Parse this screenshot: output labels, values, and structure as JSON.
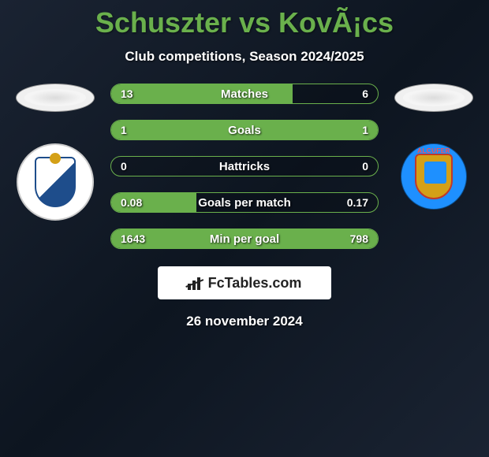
{
  "title": "Schuszter vs KovÃ¡cs",
  "subtitle": "Club competitions, Season 2024/2025",
  "date_line": "26 november 2024",
  "brand": {
    "text": "FcTables.com"
  },
  "fill_color": "#6ab04c",
  "border_color": "#6ab04c",
  "teams": {
    "left": {
      "curve_text": "",
      "logo_bg": "#ffffff"
    },
    "right": {
      "curve_text": "ALCUFER",
      "logo_bg": "#1e90ff"
    }
  },
  "stats": [
    {
      "label": "Matches",
      "left_val": "13",
      "right_val": "6",
      "fill_width": 68,
      "fill_full": false
    },
    {
      "label": "Goals",
      "left_val": "1",
      "right_val": "1",
      "fill_width": 100,
      "fill_full": true
    },
    {
      "label": "Hattricks",
      "left_val": "0",
      "right_val": "0",
      "fill_width": 0,
      "fill_full": false
    },
    {
      "label": "Goals per match",
      "left_val": "0.08",
      "right_val": "0.17",
      "fill_width": 32,
      "fill_full": false
    },
    {
      "label": "Min per goal",
      "left_val": "1643",
      "right_val": "798",
      "fill_width": 100,
      "fill_full": true
    }
  ]
}
